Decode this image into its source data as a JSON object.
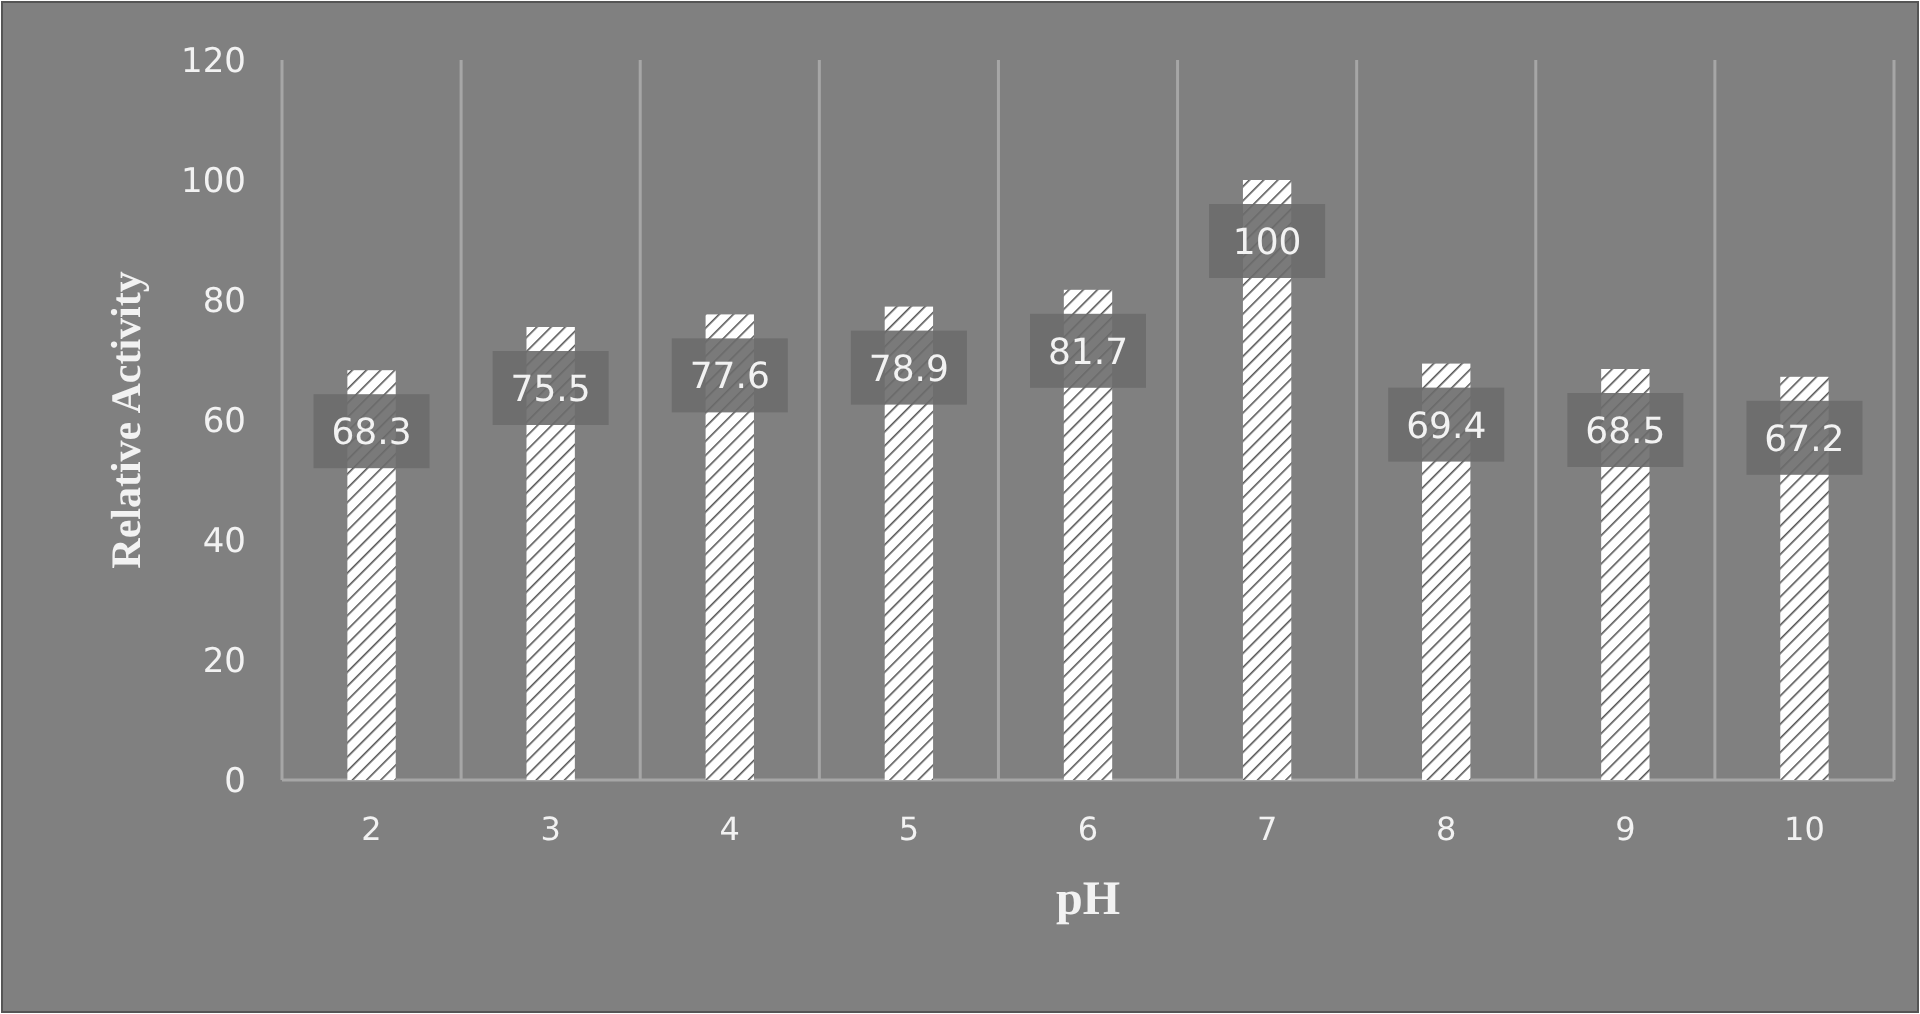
{
  "chart_data": {
    "type": "bar",
    "xlabel": "pH",
    "ylabel": "Relative Activity",
    "categories": [
      "2",
      "3",
      "4",
      "5",
      "6",
      "7",
      "8",
      "9",
      "10"
    ],
    "values": [
      68.3,
      75.5,
      77.6,
      78.9,
      81.7,
      100,
      69.4,
      68.5,
      67.2
    ],
    "color": "#ffffff",
    "ylim": [
      0,
      120
    ],
    "yticks": [
      0,
      20,
      40,
      60,
      80,
      100,
      120
    ],
    "grid": "x",
    "data_labels": true
  }
}
